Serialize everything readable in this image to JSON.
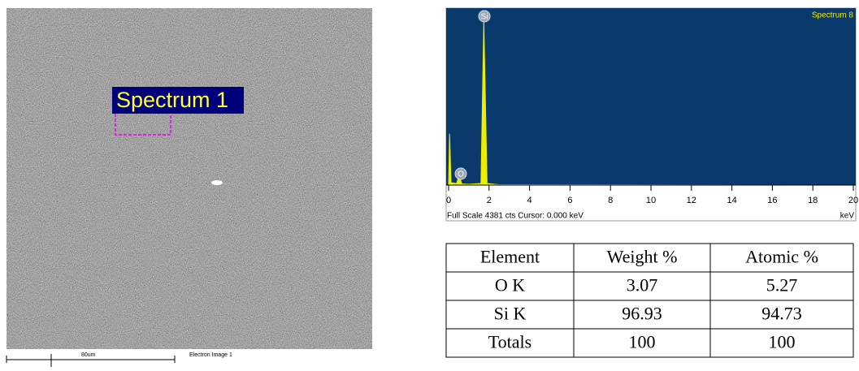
{
  "image": {
    "label": "Spectrum 1",
    "scale_bar": "80um",
    "caption": "Electron Image 1"
  },
  "chart_data": {
    "type": "area",
    "title": "Spectrum 8",
    "x": [
      0,
      0.05,
      0.12,
      0.4,
      0.52,
      0.65,
      1.0,
      1.6,
      1.74,
      1.9,
      2.5,
      20
    ],
    "values": [
      0,
      1270,
      60,
      40,
      260,
      30,
      20,
      40,
      4080,
      40,
      10,
      0
    ],
    "color": "#eeee00",
    "xlim": [
      0,
      20
    ],
    "xticks": [
      0,
      2,
      4,
      6,
      8,
      10,
      12,
      14,
      16,
      18,
      20
    ],
    "ylim": [
      0,
      4381
    ],
    "xlabel": "keV",
    "footer": "Full Scale 4381 cts  Cursor: 0.000 keV",
    "annotations": [
      "Si",
      "O"
    ]
  },
  "table": {
    "header": [
      "Element",
      "Weight %",
      "Atomic %"
    ],
    "rows": [
      [
        "O K",
        "3.07",
        "5.27"
      ],
      [
        "Si K",
        "96.93",
        "94.73"
      ],
      [
        "Totals",
        "100",
        "100"
      ]
    ]
  }
}
